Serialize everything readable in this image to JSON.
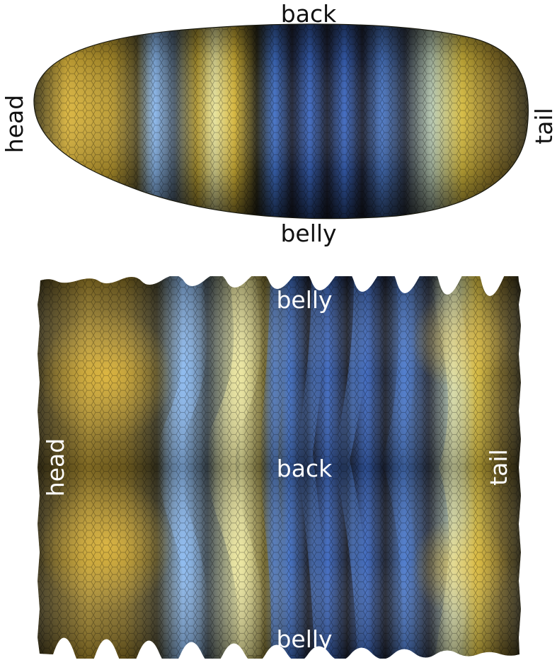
{
  "figure": {
    "top_panel": {
      "labels": {
        "back": "back",
        "belly": "belly",
        "head": "head",
        "tail": "tail"
      },
      "colors": {
        "yellow": "#d9b33a",
        "dark": "#2a2614",
        "light_blue": "#8ab8ee",
        "blue": "#3f6fc7",
        "pale_yellow": "#e6e29a",
        "label_color": "#111111"
      }
    },
    "bottom_panel": {
      "labels": {
        "belly_top": "belly",
        "back": "back",
        "belly_bottom": "belly",
        "head": "head",
        "tail": "tail"
      },
      "colors": {
        "label_color": "#ffffff"
      }
    }
  }
}
